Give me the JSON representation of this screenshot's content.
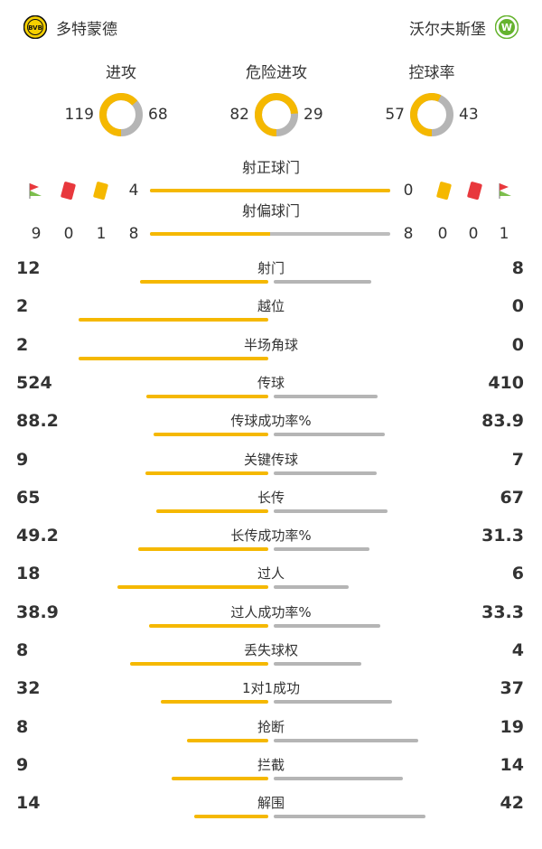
{
  "home": {
    "name": "多特蒙德",
    "logo_text": "BVB",
    "color": "#f5b800"
  },
  "away": {
    "name": "沃尔夫斯堡",
    "logo_text": "W",
    "color": "#65b32e"
  },
  "donuts": [
    {
      "title": "进攻",
      "home": 119,
      "away": 68
    },
    {
      "title": "危险进攻",
      "home": 82,
      "away": 29
    },
    {
      "title": "控球率",
      "home": 57,
      "away": 43
    }
  ],
  "shots_on": {
    "label": "射正球门",
    "home": 4,
    "away": 0
  },
  "shots_off": {
    "label": "射偏球门",
    "home": 8,
    "away": 8
  },
  "cards": {
    "home": {
      "corners": 9,
      "red": 0,
      "yellow": 1
    },
    "away": {
      "yellow": 0,
      "red": 0,
      "corners": 1
    }
  },
  "stats": [
    {
      "label": "射门",
      "home": "12",
      "away": "8"
    },
    {
      "label": "越位",
      "home": "2",
      "away": "0"
    },
    {
      "label": "半场角球",
      "home": "2",
      "away": "0"
    },
    {
      "label": "传球",
      "home": "524",
      "away": "410"
    },
    {
      "label": "传球成功率%",
      "home": "88.2",
      "away": "83.9"
    },
    {
      "label": "关键传球",
      "home": "9",
      "away": "7"
    },
    {
      "label": "长传",
      "home": "65",
      "away": "67"
    },
    {
      "label": "长传成功率%",
      "home": "49.2",
      "away": "31.3"
    },
    {
      "label": "过人",
      "home": "18",
      "away": "6"
    },
    {
      "label": "过人成功率%",
      "home": "38.9",
      "away": "33.3"
    },
    {
      "label": "丢失球权",
      "home": "8",
      "away": "4"
    },
    {
      "label": "1对1成功",
      "home": "32",
      "away": "37"
    },
    {
      "label": "抢断",
      "home": "8",
      "away": "19"
    },
    {
      "label": "拦截",
      "home": "9",
      "away": "14"
    },
    {
      "label": "解围",
      "home": "14",
      "away": "42"
    }
  ],
  "colors": {
    "home_bar": "#f5b800",
    "away_bar": "#b5b5b5",
    "red_card": "#e8383d",
    "yellow_card": "#f5b800",
    "corner_flag": "#e8383d"
  }
}
